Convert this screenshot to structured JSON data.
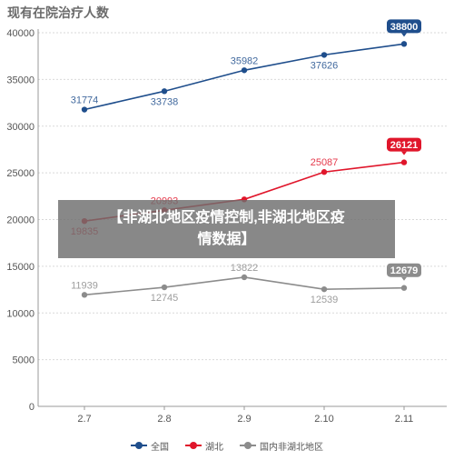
{
  "chart_data": {
    "type": "line",
    "title": "现有在院治疗人数",
    "categories": [
      "2.7",
      "2.8",
      "2.9",
      "2.10",
      "2.11"
    ],
    "ylim": [
      0,
      40000
    ],
    "yticks": [
      0,
      5000,
      10000,
      15000,
      20000,
      25000,
      30000,
      35000,
      40000
    ],
    "grid": true,
    "legend_position": "bottom",
    "series": [
      {
        "name": "全国",
        "color": "#1f4e8c",
        "values": [
          31774,
          33738,
          35982,
          37626,
          38800
        ]
      },
      {
        "name": "湖北",
        "color": "#e0162b",
        "values": [
          19835,
          20993,
          22160,
          25087,
          26121
        ]
      },
      {
        "name": "国内非湖北地区",
        "color": "#8c8c8c",
        "values": [
          11939,
          12745,
          13822,
          12539,
          12679
        ]
      }
    ],
    "point_labels": [
      [
        "31774",
        "33738",
        "35982",
        "37626",
        "38800"
      ],
      [
        "19835",
        "20993",
        "",
        "25087",
        "26121"
      ],
      [
        "11939",
        "12745",
        "13822",
        "12539",
        "12679"
      ]
    ]
  },
  "overlay": {
    "line1": "【非湖北地区疫情控制,非湖北地区疫",
    "line2": "情数据】"
  }
}
